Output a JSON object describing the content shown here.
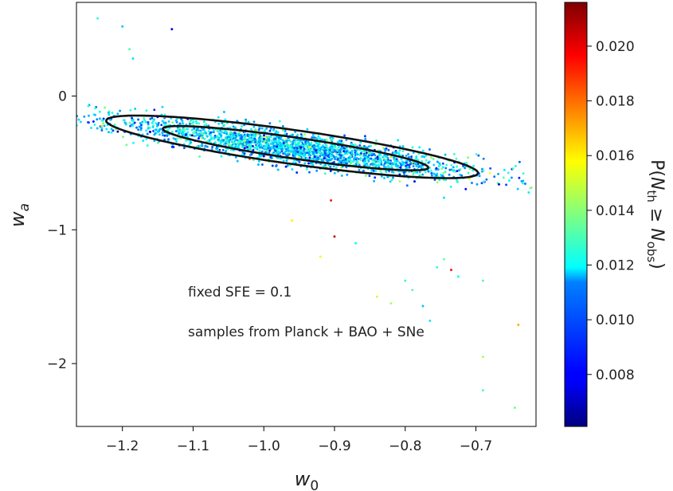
{
  "chart_data": {
    "type": "scatter",
    "title": "",
    "xlabel": "w",
    "xlabel_sub": "0",
    "ylabel": "w",
    "ylabel_sub": "a",
    "xlim": [
      -1.265,
      -0.615
    ],
    "ylim": [
      -2.47,
      0.7
    ],
    "xticks": [
      -1.2,
      -1.1,
      -1.0,
      -0.9,
      -0.8,
      -0.7
    ],
    "xtick_labels": [
      "−1.2",
      "−1.1",
      "−1.0",
      "−0.9",
      "−0.8",
      "−0.7"
    ],
    "yticks": [
      0,
      -1,
      -2
    ],
    "ytick_labels": [
      "0",
      "−1",
      "−2"
    ],
    "grid": false,
    "annotations": [
      "fixed SFE $=0.1$",
      "samples from Planck + BAO + SNe"
    ],
    "annotation_text": [
      "fixed SFE  = 0.1",
      "samples from Planck + BAO + SNe"
    ],
    "colorbar": {
      "colormap": "jet",
      "label": "P(N_th ≥ N_obs)",
      "label_parts": {
        "p": "P(",
        "n1": "N",
        "s1": "th",
        "ge": " ≥ ",
        "n2": "N",
        "s2": "obs",
        "close": ")"
      },
      "range": [
        0.0061,
        0.0216
      ],
      "ticks": [
        0.008,
        0.01,
        0.012,
        0.014,
        0.016,
        0.018,
        0.02
      ],
      "tick_labels": [
        "0.008",
        "0.010",
        "0.012",
        "0.014",
        "0.016",
        "0.018",
        "0.020"
      ]
    },
    "contours": [
      {
        "name": "",
        "center": [
          -0.955,
          -0.39
        ],
        "a": 0.2425,
        "b": 0.0618,
        "angle_deg": -40.9,
        "color": "#111111"
      },
      {
        "name": "",
        "center": [
          -0.96,
          -0.38
        ],
        "a": 0.3373,
        "b": 0.1002,
        "angle_deg": -41.0,
        "color": "#111111"
      }
    ],
    "scatter": {
      "n": 2200,
      "center": [
        -0.955,
        -0.39
      ],
      "major_sd": 0.168,
      "minor_sd": 0.046,
      "angle_deg": -41.0,
      "value_mean": 0.0112,
      "value_sd": 0.0014,
      "outliers": [
        {
          "x": -1.235,
          "y": 0.58,
          "v": 0.0125
        },
        {
          "x": -1.2,
          "y": 0.52,
          "v": 0.011
        },
        {
          "x": -1.19,
          "y": 0.35,
          "v": 0.013
        },
        {
          "x": -1.185,
          "y": 0.28,
          "v": 0.0115
        },
        {
          "x": -1.14,
          "y": -0.14,
          "v": 0.0125
        },
        {
          "x": -1.13,
          "y": 0.5,
          "v": 0.0075
        },
        {
          "x": -1.06,
          "y": -0.45,
          "v": 0.012
        },
        {
          "x": -1.02,
          "y": -0.47,
          "v": 0.0185
        },
        {
          "x": -0.96,
          "y": -0.93,
          "v": 0.016
        },
        {
          "x": -0.92,
          "y": -1.2,
          "v": 0.0155
        },
        {
          "x": -0.905,
          "y": -0.78,
          "v": 0.0195
        },
        {
          "x": -0.9,
          "y": -1.05,
          "v": 0.0205
        },
        {
          "x": -0.87,
          "y": -1.1,
          "v": 0.012
        },
        {
          "x": -0.84,
          "y": -1.5,
          "v": 0.015
        },
        {
          "x": -0.82,
          "y": -1.55,
          "v": 0.0145
        },
        {
          "x": -0.8,
          "y": -1.38,
          "v": 0.0125
        },
        {
          "x": -0.79,
          "y": -1.45,
          "v": 0.013
        },
        {
          "x": -0.775,
          "y": -1.57,
          "v": 0.011
        },
        {
          "x": -0.765,
          "y": -1.68,
          "v": 0.0115
        },
        {
          "x": -0.755,
          "y": -1.28,
          "v": 0.0125
        },
        {
          "x": -0.745,
          "y": -1.22,
          "v": 0.0135
        },
        {
          "x": -0.735,
          "y": -1.3,
          "v": 0.0195
        },
        {
          "x": -0.725,
          "y": -1.35,
          "v": 0.012
        },
        {
          "x": -0.69,
          "y": -1.38,
          "v": 0.013
        },
        {
          "x": -0.69,
          "y": -1.95,
          "v": 0.0145
        },
        {
          "x": -0.69,
          "y": -2.2,
          "v": 0.013
        },
        {
          "x": -0.64,
          "y": -1.71,
          "v": 0.017
        },
        {
          "x": -0.645,
          "y": -2.33,
          "v": 0.0135
        }
      ]
    }
  }
}
